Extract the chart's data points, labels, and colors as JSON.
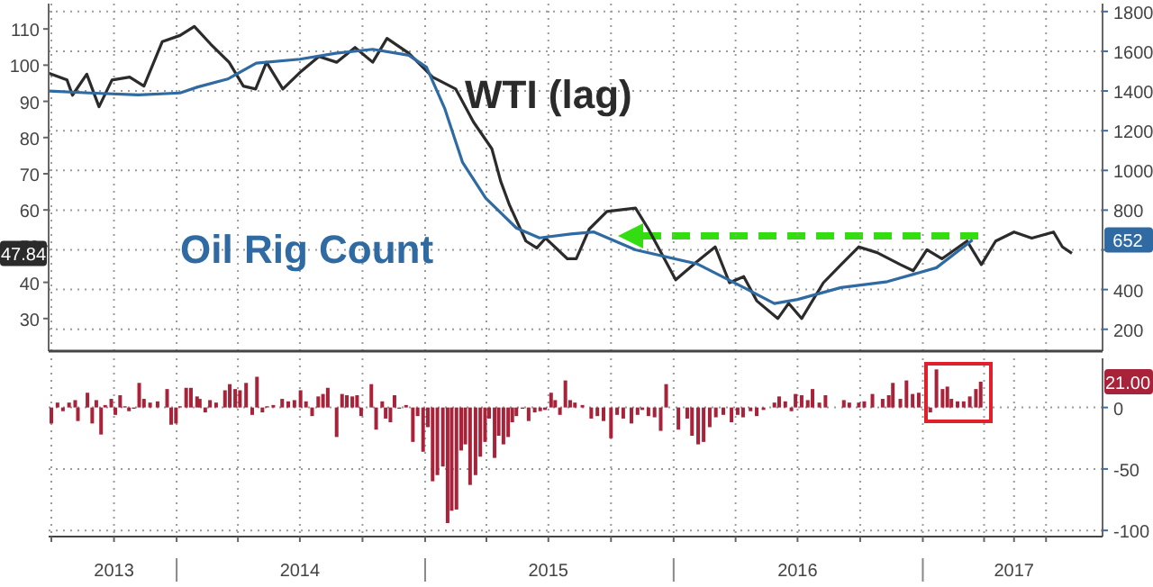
{
  "chart_data": [
    {
      "type": "line",
      "tick_labels": "y",
      "grid": true,
      "xlim": [
        "2013-06-27",
        "2017-09-22"
      ],
      "xticks": [
        {
          "value": "2013-07-01",
          "label": null
        },
        {
          "value": "2013-10-01",
          "label": null
        },
        {
          "value": "2014-01-01",
          "label": null
        },
        {
          "value": "2014-04-01",
          "label": null
        },
        {
          "value": "2014-07-01",
          "label": null
        },
        {
          "value": "2014-10-01",
          "label": null
        },
        {
          "value": "2015-01-01",
          "label": null
        },
        {
          "value": "2015-04-01",
          "label": null
        },
        {
          "value": "2015-07-01",
          "label": null
        },
        {
          "value": "2015-10-01",
          "label": null
        },
        {
          "value": "2016-01-01",
          "label": null
        },
        {
          "value": "2016-04-01",
          "label": null
        },
        {
          "value": "2016-07-01",
          "label": null
        },
        {
          "value": "2016-10-01",
          "label": null
        },
        {
          "value": "2017-01-01",
          "label": null
        },
        {
          "value": "2017-04-01",
          "label": null
        },
        {
          "value": "2017-07-01",
          "label": null
        }
      ],
      "ylim": [
        21,
        117
      ],
      "yticks": [
        30,
        40,
        50,
        60,
        70,
        80,
        90,
        100,
        110
      ],
      "y2lim": [
        90,
        1840
      ],
      "y2ticks": [
        200,
        400,
        {
          "value": 600,
          "label": null
        },
        800,
        1000,
        1200,
        1400,
        1600,
        1800
      ],
      "annotations": [
        "47.84",
        "652"
      ],
      "series": [
        {
          "name": "WTI (lag)",
          "color": "#2b2b2b",
          "x": [
            "2013-06-27",
            "2013-07-24",
            "2013-08-01",
            "2013-08-22",
            "2013-09-09",
            "2013-09-28",
            "2013-10-24",
            "2013-11-14",
            "2013-12-11",
            "2014-01-06",
            "2014-01-27",
            "2014-02-20",
            "2014-03-19",
            "2014-04-09",
            "2014-04-27",
            "2014-05-13",
            "2014-06-06",
            "2014-07-03",
            "2014-07-29",
            "2014-08-24",
            "2014-09-20",
            "2014-10-16",
            "2014-11-06",
            "2014-12-08",
            "2015-01-12",
            "2015-02-15",
            "2015-03-13",
            "2015-04-09",
            "2015-04-22",
            "2015-05-05",
            "2015-05-29",
            "2015-06-14",
            "2015-06-27",
            "2015-07-29",
            "2015-08-11",
            "2015-08-30",
            "2015-09-25",
            "2015-11-06",
            "2015-11-25",
            "2016-01-04",
            "2016-02-04",
            "2016-03-02",
            "2016-03-23",
            "2016-04-13",
            "2016-05-02",
            "2016-06-02",
            "2016-06-18",
            "2016-07-07",
            "2016-08-08",
            "2016-09-03",
            "2016-09-29",
            "2016-10-26",
            "2016-11-29",
            "2016-12-18",
            "2017-01-07",
            "2017-01-29",
            "2017-03-07",
            "2017-03-28",
            "2017-04-18",
            "2017-05-15",
            "2017-06-10",
            "2017-07-12",
            "2017-07-25",
            "2017-08-08"
          ],
          "values": [
            97.8,
            95.9,
            91.7,
            97.5,
            88.5,
            95.9,
            96.7,
            94.2,
            106.5,
            108.2,
            110.7,
            105.8,
            100.8,
            94.2,
            93.4,
            100.8,
            93.4,
            98.3,
            102.4,
            100.8,
            104.9,
            100.8,
            107.4,
            103.3,
            96.7,
            93.4,
            84.3,
            76.9,
            67.9,
            61.3,
            51.4,
            49.5,
            52.2,
            46.5,
            46.5,
            54.7,
            59.6,
            60.5,
            54.7,
            40.7,
            45.7,
            49.8,
            39.9,
            41.6,
            34.9,
            30.0,
            34.2,
            30.0,
            39.9,
            44.9,
            49.8,
            48.2,
            44.9,
            43.2,
            49.0,
            46.5,
            51.4,
            44.9,
            51.4,
            53.9,
            52.2,
            53.9,
            49.8,
            48
          ]
        },
        {
          "name": "Oil Rig Count",
          "color": "#2f6aa3",
          "axis": "y2",
          "x": [
            "2013-06-28",
            "2013-08-26",
            "2013-11-06",
            "2014-01-06",
            "2014-02-01",
            "2014-03-17",
            "2014-04-28",
            "2014-07-01",
            "2014-08-23",
            "2014-10-16",
            "2014-12-08",
            "2015-01-03",
            "2015-01-30",
            "2015-02-25",
            "2015-03-31",
            "2015-05-15",
            "2015-06-18",
            "2015-08-03",
            "2015-09-06",
            "2015-11-06",
            "2016-02-04",
            "2016-04-13",
            "2016-05-28",
            "2016-07-01",
            "2016-09-03",
            "2016-11-10",
            "2017-01-21",
            "2017-03-15"
          ],
          "values": [
            1400,
            1390,
            1380,
            1390,
            1420,
            1460,
            1540,
            1560,
            1590,
            1610,
            1580,
            1520,
            1310,
            1040,
            860,
            710,
            660,
            680,
            690,
            600,
            530,
            410,
            330,
            350,
            410,
            440,
            510,
            650
          ]
        }
      ]
    },
    {
      "type": "bar",
      "grid": true,
      "xlim": [
        "2013-06-27",
        "2017-09-22"
      ],
      "xticks": [
        {
          "value": "2013-07-01",
          "label": null
        },
        {
          "value": "2013-10-01",
          "label": "2013"
        },
        {
          "value": "2014-01-01",
          "label": null
        },
        {
          "value": "2014-04-01",
          "label": null
        },
        {
          "value": "2014-07-01",
          "label": "2014"
        },
        {
          "value": "2014-10-01",
          "label": null
        },
        {
          "value": "2015-01-01",
          "label": null
        },
        {
          "value": "2015-04-01",
          "label": null
        },
        {
          "value": "2015-07-01",
          "label": "2015"
        },
        {
          "value": "2015-10-01",
          "label": null
        },
        {
          "value": "2016-01-01",
          "label": null
        },
        {
          "value": "2016-04-01",
          "label": null
        },
        {
          "value": "2016-07-01",
          "label": "2016"
        },
        {
          "value": "2016-10-01",
          "label": null
        },
        {
          "value": "2017-01-01",
          "label": null
        },
        {
          "value": "2017-04-01",
          "label": null
        },
        {
          "value": "2017-05-15",
          "label": "2017"
        },
        {
          "value": "2017-07-01",
          "label": null
        }
      ],
      "y2lim": [
        -105,
        40
      ],
      "y2ticks": [
        -100,
        -50,
        0
      ],
      "annotations": [
        "21.00"
      ],
      "series": [
        {
          "color": "#a8233a",
          "axis": "y2",
          "x": [
            "2013-07-01",
            "2013-07-10",
            "2013-07-18",
            "2013-07-27",
            "2013-08-05",
            "2013-08-09",
            "2013-08-23",
            "2013-08-30",
            "2013-09-05",
            "2013-09-12",
            "2013-09-18",
            "2013-09-27",
            "2013-10-03",
            "2013-10-10",
            "2013-10-17",
            "2013-10-23",
            "2013-10-30",
            "2013-11-07",
            "2013-11-14",
            "2013-11-23",
            "2013-12-04",
            "2013-12-18",
            "2013-12-24",
            "2013-12-31",
            "2014-01-06",
            "2014-01-15",
            "2014-01-22",
            "2014-01-31",
            "2014-02-04",
            "2014-02-12",
            "2014-02-19",
            "2014-02-28",
            "2014-03-13",
            "2014-03-20",
            "2014-03-28",
            "2014-04-04",
            "2014-04-13",
            "2014-04-22",
            "2014-04-29",
            "2014-05-07",
            "2014-05-14",
            "2014-05-23",
            "2014-06-05",
            "2014-06-14",
            "2014-06-23",
            "2014-07-02",
            "2014-07-10",
            "2014-07-19",
            "2014-07-28",
            "2014-08-04",
            "2014-08-11",
            "2014-08-24",
            "2014-09-01",
            "2014-09-08",
            "2014-09-16",
            "2014-09-23",
            "2014-09-29",
            "2014-10-14",
            "2014-10-21",
            "2014-10-30",
            "2014-11-04",
            "2014-11-11",
            "2014-11-17",
            "2014-11-24",
            "2014-12-04",
            "2014-12-14",
            "2014-12-21",
            "2014-12-29",
            "2015-01-05",
            "2015-01-12",
            "2015-01-19",
            "2015-01-27",
            "2015-02-03",
            "2015-02-09",
            "2015-02-16",
            "2015-02-23",
            "2015-03-01",
            "2015-03-08",
            "2015-03-16",
            "2015-03-23",
            "2015-03-30",
            "2015-04-05",
            "2015-04-13",
            "2015-04-19",
            "2015-04-26",
            "2015-05-03",
            "2015-05-09",
            "2015-05-15",
            "2015-05-24",
            "2015-06-02",
            "2015-06-11",
            "2015-06-19",
            "2015-06-26",
            "2015-07-05",
            "2015-07-11",
            "2015-07-18",
            "2015-07-26",
            "2015-08-02",
            "2015-08-09",
            "2015-08-20",
            "2015-09-02",
            "2015-09-11",
            "2015-09-20",
            "2015-10-01",
            "2015-10-10",
            "2015-10-19",
            "2015-10-31",
            "2015-11-09",
            "2015-11-16",
            "2015-11-25",
            "2015-12-04",
            "2015-12-13",
            "2015-12-21",
            "2015-12-29",
            "2016-01-08",
            "2016-01-21",
            "2016-01-28",
            "2016-02-06",
            "2016-02-14",
            "2016-02-23",
            "2016-03-03",
            "2016-03-14",
            "2016-03-26",
            "2016-04-04",
            "2016-04-12",
            "2016-04-23",
            "2016-05-02",
            "2016-05-12",
            "2016-05-28",
            "2016-06-04",
            "2016-06-13",
            "2016-06-22",
            "2016-06-28",
            "2016-07-07",
            "2016-07-16",
            "2016-07-23",
            "2016-08-02",
            "2016-08-11",
            "2016-09-07",
            "2016-09-15",
            "2016-09-29",
            "2016-10-07",
            "2016-10-19",
            "2016-11-03",
            "2016-11-12",
            "2016-11-18",
            "2016-11-29",
            "2016-12-08",
            "2016-12-17",
            "2016-12-26",
            "2017-01-12",
            "2017-01-21",
            "2017-01-30",
            "2017-02-06",
            "2017-02-12",
            "2017-02-21",
            "2017-03-02",
            "2017-03-11",
            "2017-03-20",
            "2017-03-27"
          ],
          "values": [
            -13,
            4,
            -3,
            4,
            6,
            -11,
            12,
            -13,
            6,
            -22,
            2,
            7,
            -6,
            10,
            1,
            -3,
            -1,
            20,
            7,
            4,
            5,
            15,
            -14,
            -13,
            1,
            16,
            16,
            9,
            7,
            -4,
            6,
            4,
            14,
            19,
            15,
            14,
            20,
            -6,
            25,
            -4,
            1,
            2,
            7,
            5,
            6,
            14,
            5,
            -7,
            9,
            11,
            16,
            -24,
            11,
            10,
            9,
            10,
            -7,
            19,
            -18,
            5,
            -9,
            -12,
            10,
            -1,
            2,
            -28,
            -7,
            -36,
            -16,
            -60,
            -55,
            -48,
            -94,
            -84,
            -83,
            -35,
            -30,
            -63,
            -55,
            -40,
            -28,
            -9,
            -41,
            -23,
            -30,
            -24,
            -12,
            -7,
            -1,
            -11,
            -4,
            -3,
            -2,
            12,
            6,
            -6,
            22,
            6,
            4,
            2,
            -9,
            -7,
            -11,
            -25,
            -6,
            -9,
            -13,
            -6,
            -2,
            -7,
            -8,
            -19,
            19,
            0,
            -18,
            -9,
            -23,
            -30,
            -28,
            -16,
            -8,
            -6,
            -12,
            -6,
            -8,
            -3,
            -7,
            -2,
            4,
            9,
            5,
            -3,
            11,
            10,
            6,
            15,
            4,
            10,
            6,
            4,
            4,
            5,
            11,
            7,
            10,
            20,
            7,
            22,
            11,
            12,
            -4,
            31,
            15,
            17,
            7,
            5,
            5,
            9,
            15,
            21
          ]
        }
      ]
    }
  ]
}
